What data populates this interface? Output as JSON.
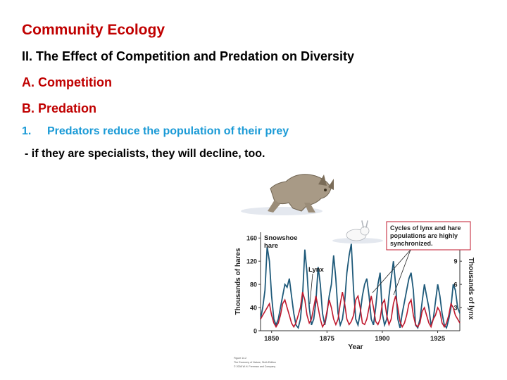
{
  "slide": {
    "title": "Community Ecology",
    "heading": "II. The Effect of Competition and Predation on Diversity",
    "section_a": "A. Competition",
    "section_b": "B. Predation",
    "point_number": "1.",
    "point_text": "Predators reduce the population of their prey",
    "note": "- if they are specialists, they will decline, too."
  },
  "colors": {
    "title_red": "#c00000",
    "point_blue": "#1a9ad6",
    "hare_line": "#1f5a7a",
    "lynx_line": "#c0192e",
    "callout_border": "#c0192e"
  },
  "chart_data": {
    "type": "line",
    "xlabel": "Year",
    "ylabel": "Thousands of hares",
    "y2label": "Thousands of lynx",
    "x_ticks": [
      1850,
      1875,
      1900,
      1925
    ],
    "y_ticks": [
      0,
      40,
      80,
      120,
      160
    ],
    "y2_ticks": [
      3,
      6,
      9
    ],
    "xlim": [
      1845,
      1935
    ],
    "ylim": [
      0,
      170
    ],
    "y2lim": [
      0,
      12.75
    ],
    "annotations": {
      "hare_label": "Snowshoe hare",
      "lynx_label": "Lynx",
      "callout": "Cycles of lynx and hare populations are highly synchronized."
    },
    "figure_credit": [
      "Figure 14.2",
      "The Economy of Nature, Sixth Edition",
      "© 2008 W.H. Freeman and Company"
    ],
    "series": [
      {
        "name": "Snowshoe hare",
        "axis": "left",
        "x": [
          1845,
          1846,
          1847,
          1848,
          1849,
          1850,
          1851,
          1852,
          1853,
          1854,
          1855,
          1856,
          1857,
          1858,
          1859,
          1860,
          1861,
          1862,
          1863,
          1864,
          1865,
          1866,
          1867,
          1868,
          1869,
          1870,
          1871,
          1872,
          1873,
          1874,
          1875,
          1876,
          1877,
          1878,
          1879,
          1880,
          1881,
          1882,
          1883,
          1884,
          1885,
          1886,
          1887,
          1888,
          1889,
          1890,
          1891,
          1892,
          1893,
          1894,
          1895,
          1896,
          1897,
          1898,
          1899,
          1900,
          1901,
          1902,
          1903,
          1904,
          1905,
          1906,
          1907,
          1908,
          1909,
          1910,
          1911,
          1912,
          1913,
          1914,
          1915,
          1916,
          1917,
          1918,
          1919,
          1920,
          1921,
          1922,
          1923,
          1924,
          1925,
          1926,
          1927,
          1928,
          1929,
          1930,
          1931,
          1932,
          1933,
          1934,
          1935
        ],
        "values": [
          20,
          40,
          70,
          145,
          120,
          60,
          20,
          10,
          20,
          40,
          60,
          80,
          75,
          90,
          60,
          30,
          10,
          5,
          20,
          60,
          140,
          100,
          40,
          10,
          20,
          50,
          110,
          80,
          30,
          10,
          30,
          60,
          80,
          130,
          90,
          30,
          10,
          20,
          50,
          100,
          130,
          150,
          70,
          20,
          10,
          30,
          60,
          80,
          90,
          60,
          20,
          10,
          40,
          80,
          100,
          30,
          10,
          20,
          60,
          90,
          120,
          80,
          20,
          5,
          30,
          50,
          70,
          90,
          100,
          70,
          10,
          5,
          20,
          50,
          80,
          60,
          40,
          10,
          20,
          50,
          80,
          60,
          30,
          10,
          5,
          20,
          40,
          80,
          70,
          40,
          30
        ]
      },
      {
        "name": "Lynx",
        "axis": "right",
        "x": [
          1845,
          1846,
          1847,
          1848,
          1849,
          1850,
          1851,
          1852,
          1853,
          1854,
          1855,
          1856,
          1857,
          1858,
          1859,
          1860,
          1861,
          1862,
          1863,
          1864,
          1865,
          1866,
          1867,
          1868,
          1869,
          1870,
          1871,
          1872,
          1873,
          1874,
          1875,
          1876,
          1877,
          1878,
          1879,
          1880,
          1881,
          1882,
          1883,
          1884,
          1885,
          1886,
          1887,
          1888,
          1889,
          1890,
          1891,
          1892,
          1893,
          1894,
          1895,
          1896,
          1897,
          1898,
          1899,
          1900,
          1901,
          1902,
          1903,
          1904,
          1905,
          1906,
          1907,
          1908,
          1909,
          1910,
          1911,
          1912,
          1913,
          1914,
          1915,
          1916,
          1917,
          1918,
          1919,
          1920,
          1921,
          1922,
          1923,
          1924,
          1925,
          1926,
          1927,
          1928,
          1929,
          1930,
          1931,
          1932,
          1933,
          1934,
          1935
        ],
        "values": [
          1.5,
          2,
          2.5,
          3,
          3.5,
          2,
          1,
          0.5,
          1,
          2,
          3.5,
          4,
          3,
          2,
          1,
          0.5,
          1,
          2,
          3,
          5,
          4,
          2,
          1,
          1.5,
          3,
          4.5,
          3,
          1.5,
          0.5,
          1,
          2.5,
          4,
          3,
          1.5,
          0.8,
          1.5,
          3.5,
          5,
          3.5,
          1.5,
          0.8,
          1.2,
          2,
          4,
          4.5,
          3,
          1,
          0.8,
          1.5,
          3,
          4.5,
          3,
          1.2,
          0.8,
          1.5,
          3.5,
          4,
          2,
          0.8,
          1.5,
          3.5,
          4.5,
          3,
          1.2,
          0.5,
          1,
          2,
          3.5,
          4,
          2,
          0.8,
          0.5,
          1,
          2.5,
          3,
          2,
          1,
          0.5,
          1.5,
          2,
          3,
          2.5,
          1,
          0.5,
          1,
          2,
          3.5,
          3,
          2,
          1.5,
          1
        ]
      }
    ]
  }
}
